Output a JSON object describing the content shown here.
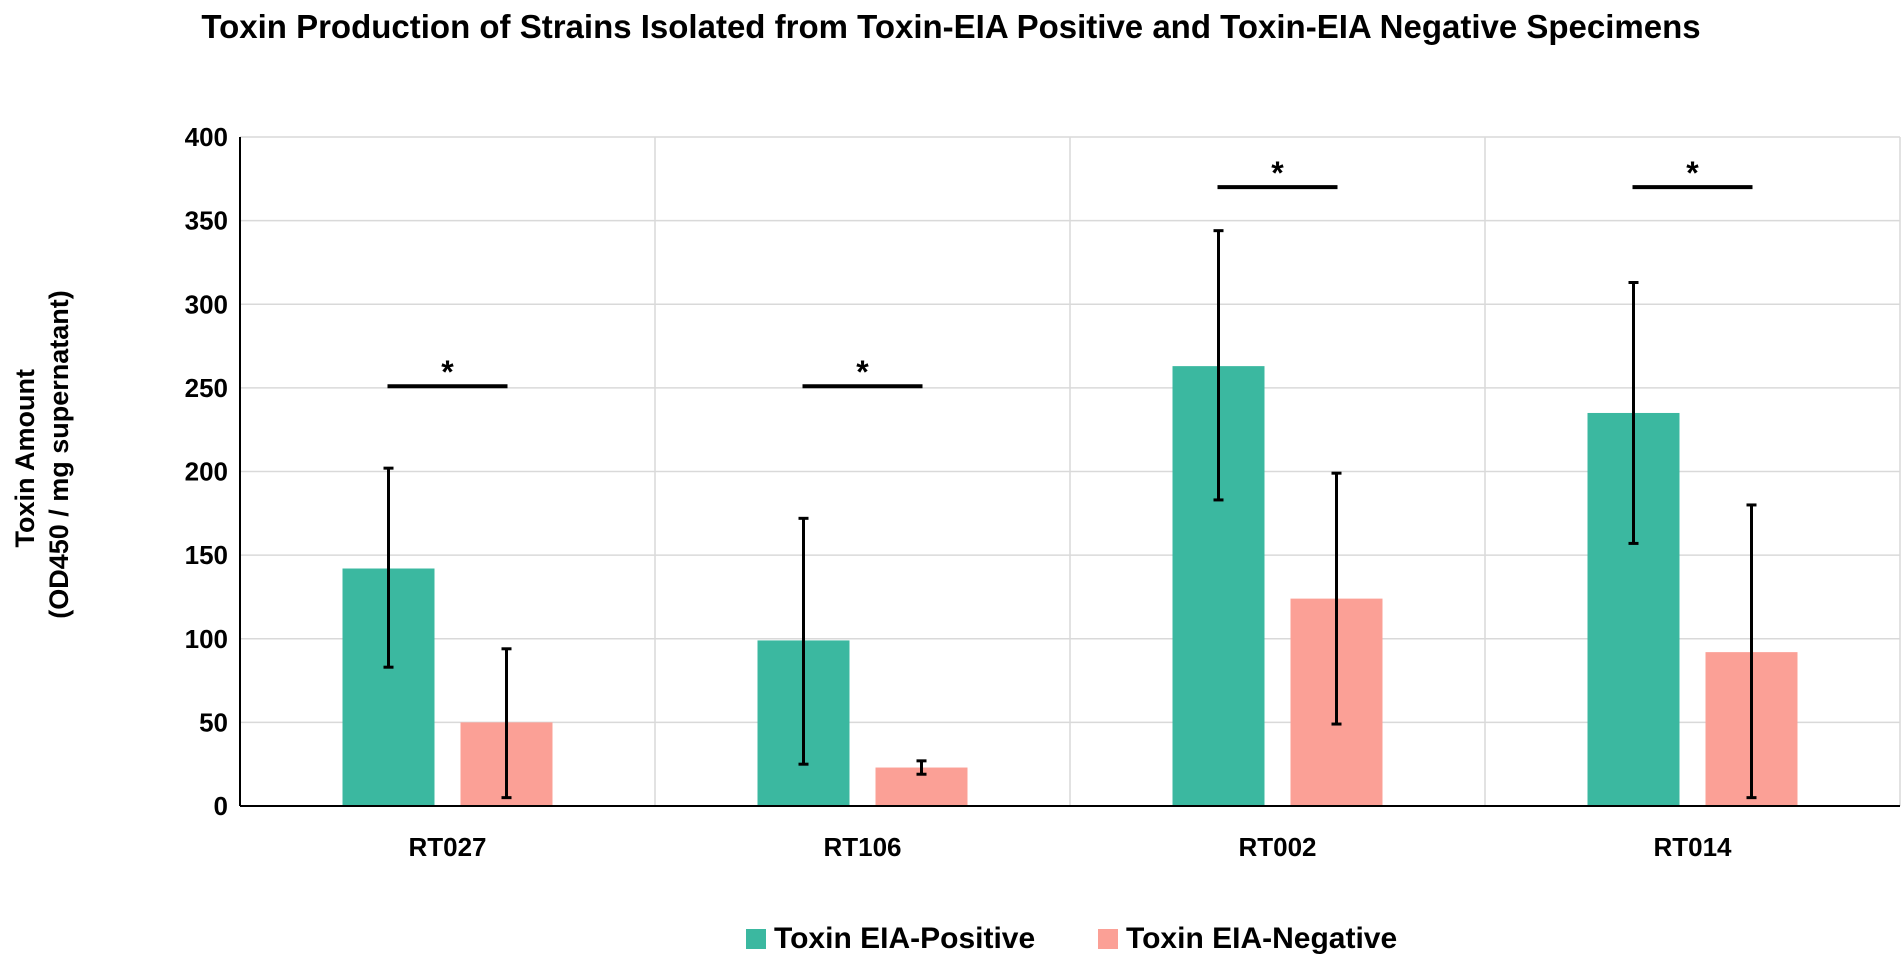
{
  "chart_data": {
    "type": "bar",
    "title": "Toxin Production of Strains Isolated from Toxin-EIA Positive and Toxin-EIA Negative Specimens",
    "xlabel": "",
    "ylabel_lines": [
      "Toxin Amount",
      "(OD450 / mg supernatant)"
    ],
    "ylim": [
      0,
      400
    ],
    "yticks": [
      0,
      50,
      100,
      150,
      200,
      250,
      300,
      350,
      400
    ],
    "grid": true,
    "legend_position": "bottom",
    "categories": [
      "RT027",
      "RT106",
      "RT002",
      "RT014"
    ],
    "series": [
      {
        "name": "Toxin EIA-Positive",
        "color": "#3bb8a0",
        "values": [
          142,
          99,
          263,
          235
        ],
        "error_low": [
          83,
          25,
          183,
          157
        ],
        "error_high": [
          202,
          172,
          344,
          313
        ]
      },
      {
        "name": "Toxin EIA-Negative",
        "color": "#fba096",
        "values": [
          50,
          23,
          124,
          92
        ],
        "error_low": [
          5,
          19,
          49,
          5
        ],
        "error_high": [
          94,
          27,
          199,
          180
        ]
      }
    ],
    "significance": [
      {
        "category": "RT027",
        "y": 251,
        "label": "*"
      },
      {
        "category": "RT106",
        "y": 251,
        "label": "*"
      },
      {
        "category": "RT002",
        "y": 370,
        "label": "*"
      },
      {
        "category": "RT014",
        "y": 370,
        "label": "*"
      }
    ]
  }
}
